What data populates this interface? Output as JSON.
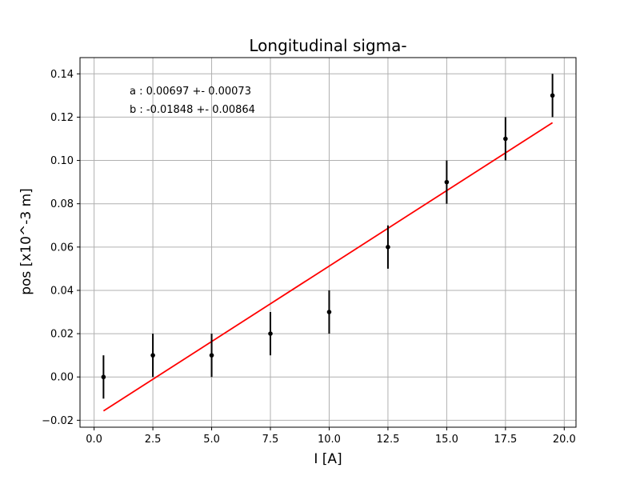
{
  "chart_data": {
    "type": "scatter",
    "title": "Longitudinal sigma-",
    "xlabel": "I [A]",
    "ylabel": "pos [x10^-3 m]",
    "xlim": [
      -0.6,
      20.5
    ],
    "ylim": [
      -0.0232,
      0.1475
    ],
    "grid": true,
    "x_ticks": [
      0.0,
      2.5,
      5.0,
      7.5,
      10.0,
      12.5,
      15.0,
      17.5,
      20.0
    ],
    "x_tick_labels": [
      "0.0",
      "2.5",
      "5.0",
      "7.5",
      "10.0",
      "12.5",
      "15.0",
      "17.5",
      "20.0"
    ],
    "y_ticks": [
      -0.02,
      0.0,
      0.02,
      0.04,
      0.06,
      0.08,
      0.1,
      0.12,
      0.14
    ],
    "y_tick_labels": [
      "−0.02",
      "0.00",
      "0.02",
      "0.04",
      "0.06",
      "0.08",
      "0.10",
      "0.12",
      "0.14"
    ],
    "points": {
      "x": [
        0.4,
        2.5,
        5.0,
        7.5,
        10.0,
        12.5,
        15.0,
        17.5,
        19.5
      ],
      "y": [
        0.0,
        0.01,
        0.01,
        0.02,
        0.03,
        0.06,
        0.09,
        0.11,
        0.13
      ],
      "yerr": [
        0.01,
        0.01,
        0.01,
        0.01,
        0.01,
        0.01,
        0.01,
        0.01,
        0.01
      ],
      "color": "#000000"
    },
    "fit": {
      "a": 0.00697,
      "b": -0.01848,
      "x_range": [
        0.4,
        19.5
      ],
      "color": "#ff0000"
    },
    "annotations": [
      "a : 0.00697 +- 0.00073",
      "b : -0.01848 +- 0.00864"
    ]
  }
}
